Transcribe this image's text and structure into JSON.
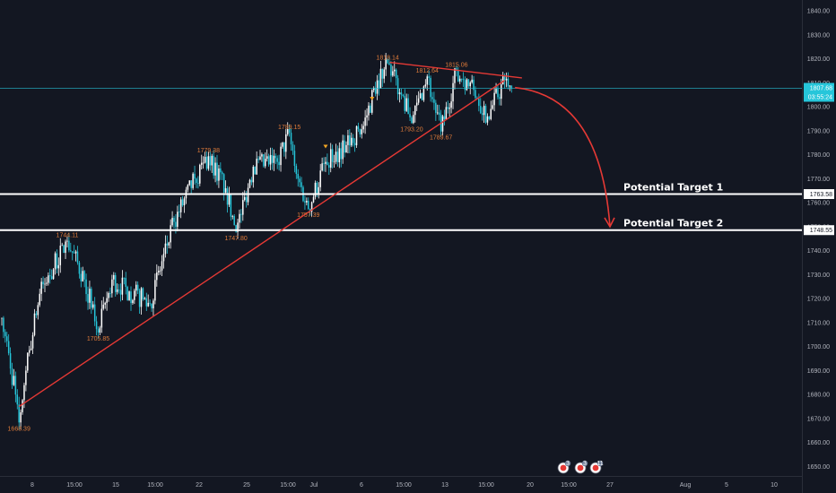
{
  "colors": {
    "background": "#131722",
    "bull_candle": "#ffffff",
    "bear_candle": "#26c6da",
    "trendline": "#e53935",
    "annotation": "#e07b3a",
    "current_price_line": "#26c6da",
    "target_line": "#ffffff",
    "axis_text": "#b2b5be"
  },
  "chart_data": {
    "type": "candlestick",
    "ylim": [
      1646,
      1845
    ],
    "y_ticks": [
      "1840.00",
      "1830.00",
      "1820.00",
      "1810.00",
      "1800.00",
      "1790.00",
      "1780.00",
      "1770.00",
      "1760.00",
      "1750.00",
      "1740.00",
      "1730.00",
      "1720.00",
      "1710.00",
      "1700.00",
      "1690.00",
      "1680.00",
      "1670.00",
      "1660.00",
      "1650.00"
    ],
    "x_ticks": [
      "8",
      "15:00",
      "15",
      "15:00",
      "22",
      "25",
      "15:00",
      "Jul",
      "6",
      "15:00",
      "13",
      "15:00",
      "20",
      "15:00",
      "27",
      "Aug",
      "5",
      "10"
    ],
    "anchors": [
      {
        "bar": 0,
        "price": 1712
      },
      {
        "bar": 8,
        "price": 1680
      },
      {
        "bar": 10,
        "price": 1668.39
      },
      {
        "bar": 14,
        "price": 1690
      },
      {
        "bar": 22,
        "price": 1722
      },
      {
        "bar": 38,
        "price": 1744.11
      },
      {
        "bar": 48,
        "price": 1728
      },
      {
        "bar": 56,
        "price": 1705.85
      },
      {
        "bar": 64,
        "price": 1728
      },
      {
        "bar": 74,
        "price": 1723
      },
      {
        "bar": 86,
        "price": 1718
      },
      {
        "bar": 100,
        "price": 1752
      },
      {
        "bar": 112,
        "price": 1770
      },
      {
        "bar": 120,
        "price": 1779.38
      },
      {
        "bar": 130,
        "price": 1766
      },
      {
        "bar": 136,
        "price": 1747.8
      },
      {
        "bar": 146,
        "price": 1775
      },
      {
        "bar": 160,
        "price": 1777
      },
      {
        "bar": 167,
        "price": 1789.15
      },
      {
        "bar": 172,
        "price": 1770
      },
      {
        "bar": 178,
        "price": 1757.39
      },
      {
        "bar": 188,
        "price": 1777
      },
      {
        "bar": 200,
        "price": 1784
      },
      {
        "bar": 210,
        "price": 1792
      },
      {
        "bar": 218,
        "price": 1811
      },
      {
        "bar": 224,
        "price": 1818.14
      },
      {
        "bar": 232,
        "price": 1805
      },
      {
        "bar": 238,
        "price": 1793.2
      },
      {
        "bar": 247,
        "price": 1812.64
      },
      {
        "bar": 255,
        "price": 1789.67
      },
      {
        "bar": 264,
        "price": 1815.06
      },
      {
        "bar": 274,
        "price": 1807
      },
      {
        "bar": 282,
        "price": 1796
      },
      {
        "bar": 292,
        "price": 1811
      },
      {
        "bar": 296,
        "price": 1807.68
      }
    ],
    "annotations": [
      {
        "text": "1668.39",
        "bar": 10,
        "price": 1668.39,
        "pos": "below"
      },
      {
        "text": "1744.11",
        "bar": 38,
        "price": 1744.11,
        "pos": "above"
      },
      {
        "text": "1705.85",
        "bar": 56,
        "price": 1705.85,
        "pos": "below"
      },
      {
        "text": "1779.38",
        "bar": 120,
        "price": 1779.38,
        "pos": "above"
      },
      {
        "text": "1747.80",
        "bar": 136,
        "price": 1747.8,
        "pos": "below"
      },
      {
        "text": "1789.15",
        "bar": 167,
        "price": 1789.15,
        "pos": "above"
      },
      {
        "text": "1757.39",
        "bar": 178,
        "price": 1757.39,
        "pos": "below"
      },
      {
        "text": "1818.14",
        "bar": 224,
        "price": 1818.14,
        "pos": "above"
      },
      {
        "text": "1793.20",
        "bar": 238,
        "price": 1793.2,
        "pos": "below"
      },
      {
        "text": "1812.64",
        "bar": 247,
        "price": 1812.64,
        "pos": "above"
      },
      {
        "text": "1789.67",
        "bar": 255,
        "price": 1789.67,
        "pos": "below"
      },
      {
        "text": "1815.06",
        "bar": 264,
        "price": 1815.06,
        "pos": "above"
      }
    ],
    "ascending_trendline": {
      "from": {
        "bar": 10,
        "price": 1675
      },
      "to": {
        "bar": 292,
        "price": 1811
      }
    },
    "descending_trendline": {
      "from": {
        "bar": 220,
        "price": 1818.5
      },
      "to": {
        "bar": 302,
        "price": 1812
      }
    },
    "projection_arrow": {
      "from": {
        "bar": 298,
        "price": 1808
      },
      "to": {
        "bar": 342,
        "price": 1750
      }
    },
    "current_price": {
      "value": 1807.68,
      "label": "1807.68",
      "countdown": "03:55:24"
    },
    "targets": [
      {
        "name": "Potential Target 1",
        "value": 1763.58,
        "label": "1763.58"
      },
      {
        "name": "Potential Target 2",
        "value": 1748.55,
        "label": "1748.55"
      }
    ],
    "signal_markers": [
      {
        "bar": 188,
        "price": 1783,
        "dir": "down"
      },
      {
        "bar": 215,
        "price": 1803,
        "dir": "down"
      }
    ],
    "event_badges": [
      "3",
      "3",
      "11"
    ]
  }
}
